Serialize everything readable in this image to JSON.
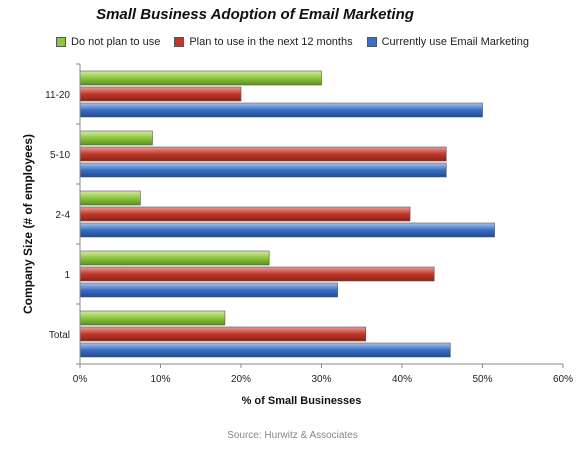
{
  "chart_data": {
    "type": "bar",
    "orientation": "horizontal",
    "title": "Small Business Adoption of Email Marketing",
    "xlabel": "% of Small Businesses",
    "ylabel": "Company Size (# of employees)",
    "categories": [
      "11-20",
      "5-10",
      "2-4",
      "1",
      "Total"
    ],
    "series": [
      {
        "name": "Do not plan to use",
        "values": [
          30,
          9,
          7.5,
          23.5,
          18
        ],
        "color": "#8cc63f"
      },
      {
        "name": "Plan to use in the next 12 months",
        "values": [
          20,
          45.5,
          41,
          44,
          35.5
        ],
        "color": "#c0392b"
      },
      {
        "name": "Currently use Email Marketing",
        "values": [
          50,
          45.5,
          51.5,
          32,
          46
        ],
        "color": "#3a6fc4"
      }
    ],
    "xlim": [
      0,
      60
    ],
    "xticks": [
      "0%",
      "10%",
      "20%",
      "30%",
      "40%",
      "50%",
      "60%"
    ],
    "grid": false,
    "legend": "top"
  },
  "source": "Source: Hurwitz & Associates"
}
